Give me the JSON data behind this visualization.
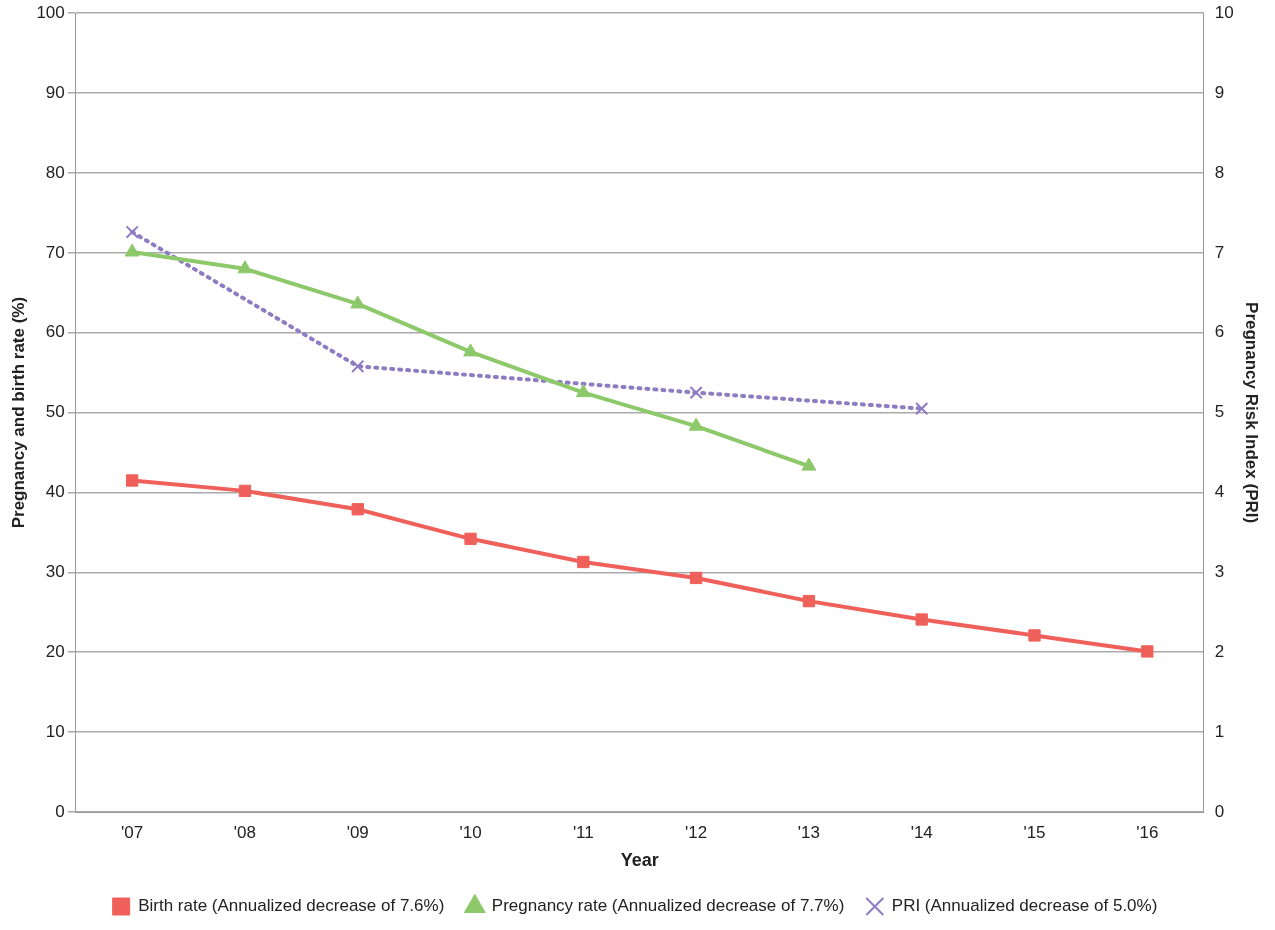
{
  "chart_data": {
    "type": "line",
    "xlabel": "Year",
    "ylabel": "Pregnancy and birth rate (%)",
    "y2label": "Pregnancy Risk Index (PRI)",
    "categories": [
      "'07",
      "'08",
      "'09",
      "'10",
      "'11",
      "'12",
      "'13",
      "'14",
      "'15",
      "'16"
    ],
    "series": [
      {
        "name": "Birth rate (Annualized decrease of 7.6%)",
        "color": "#f0605a",
        "marker": "square",
        "line_style": "solid",
        "values": [
          41.5,
          40.2,
          37.9,
          34.2,
          31.3,
          29.3,
          26.4,
          24.1,
          22.1,
          20.1
        ]
      },
      {
        "name": "Pregnancy rate (Annualized decrease of 7.7%)",
        "color": "#8dc96b",
        "marker": "triangle",
        "line_style": "solid",
        "values": [
          70.1,
          68.0,
          63.6,
          57.6,
          52.5,
          48.3,
          43.3,
          null,
          null,
          null
        ]
      },
      {
        "name": "PRI (Annualized decrease of 5.0%)",
        "color": "#8e7cc3",
        "marker": "cross",
        "line_style": "dotted",
        "axis": "y2",
        "x": [
          "'07",
          "'09",
          "'12",
          "'14"
        ],
        "values": [
          7.26,
          5.58,
          5.25,
          5.05
        ]
      }
    ],
    "ylim": [
      0,
      100
    ],
    "yticks": [
      0,
      10,
      20,
      30,
      40,
      50,
      60,
      70,
      80,
      90,
      100
    ],
    "y2lim": [
      0,
      10
    ],
    "y2ticks": [
      0,
      1,
      2,
      3,
      4,
      5,
      6,
      7,
      8,
      9,
      10
    ],
    "grid": "y",
    "legend": "bottom"
  }
}
